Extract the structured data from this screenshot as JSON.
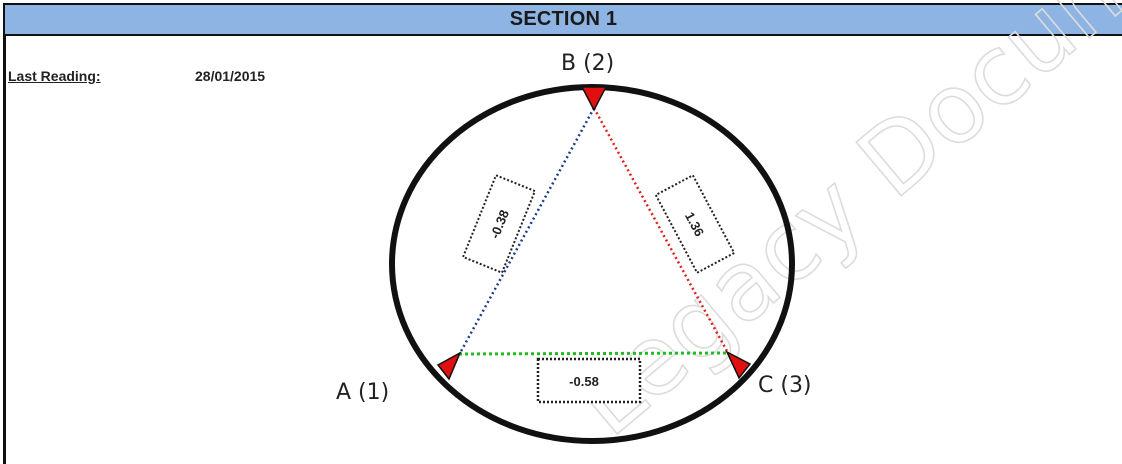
{
  "section_title": "SECTION 1",
  "last_reading": {
    "label": "Last Reading:",
    "date": "28/01/2015"
  },
  "points": {
    "a": "A (1)",
    "b": "B (2)",
    "c": "C (3)"
  },
  "measurements": {
    "ab": "-0.38",
    "bc": "1.36",
    "ac": "-0.58"
  },
  "colors": {
    "header": "#8eb4e3",
    "line_ab": "#1f3c88",
    "line_bc": "#e02020",
    "line_ac": "#22bb22",
    "marker": "#e01010"
  },
  "watermark": "Legacy Document"
}
